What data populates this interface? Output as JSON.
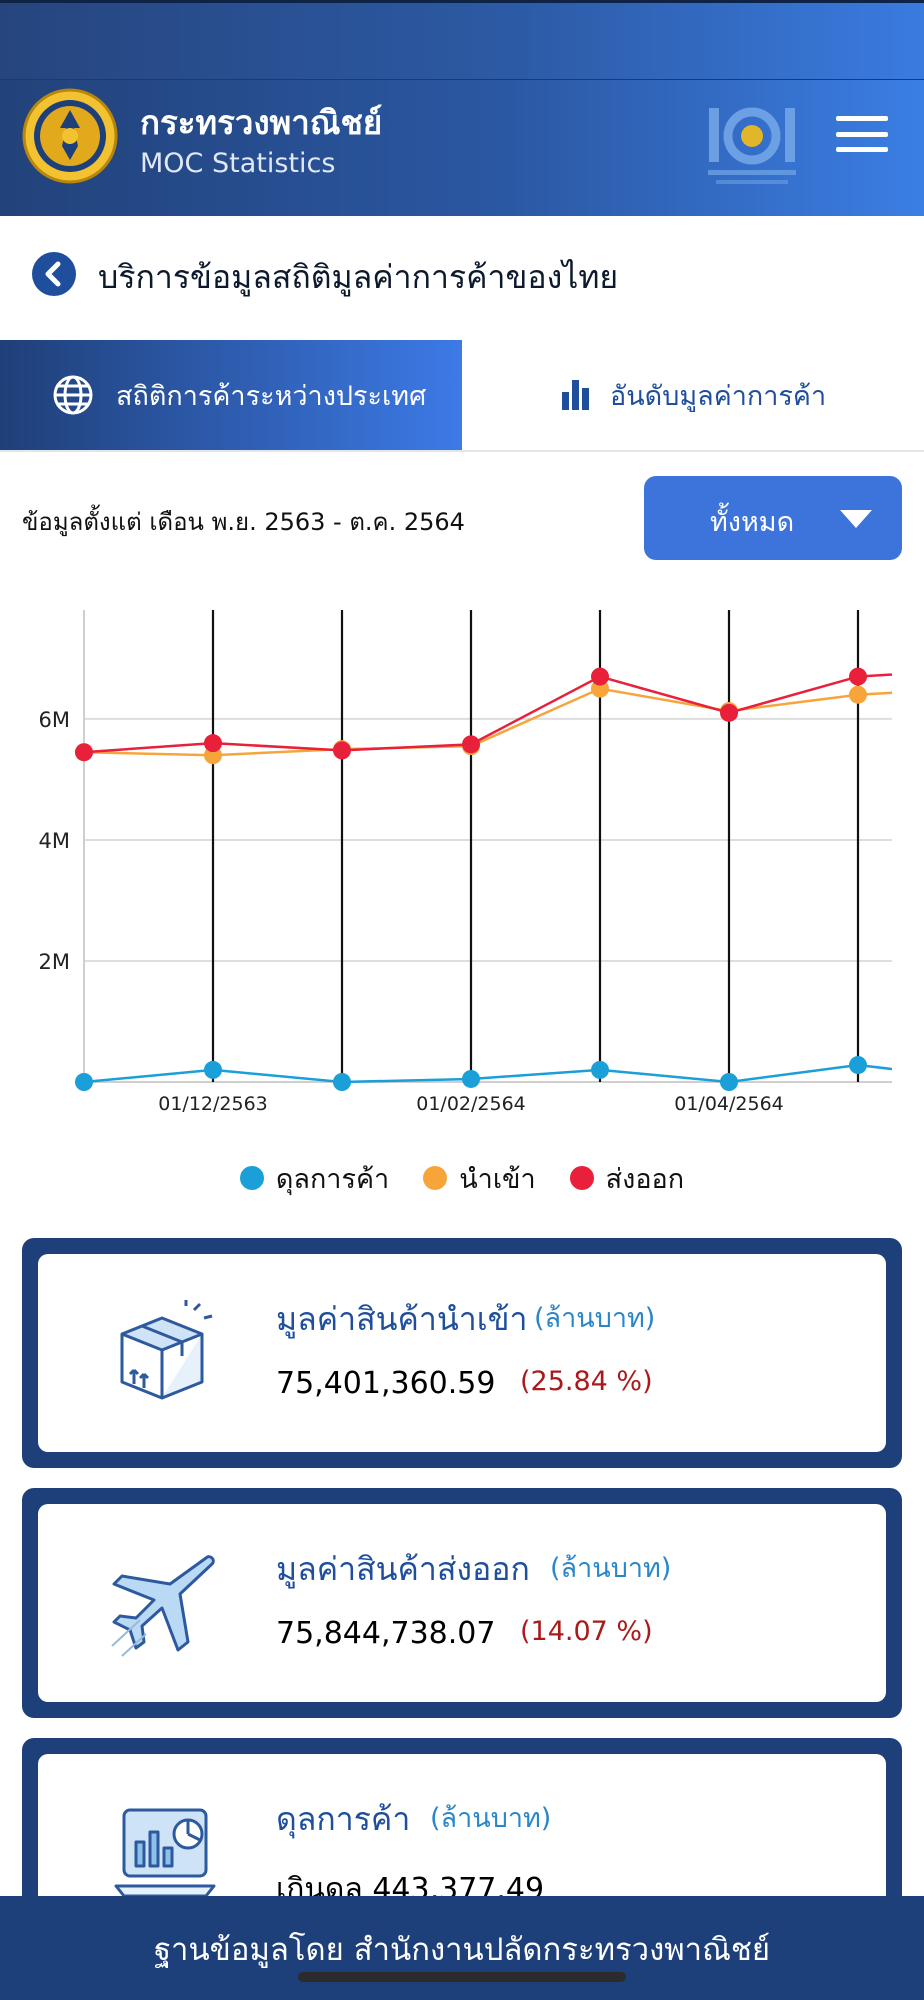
{
  "header": {
    "title": "กระทรวงพาณิชย์",
    "subtitle": "MOC Statistics"
  },
  "page": {
    "title": "บริการข้อมูลสถิติมูลค่าการค้าของไทย"
  },
  "tabs": [
    {
      "label": "สถิติการค้าระหว่างประเทศ",
      "active": true,
      "icon": "globe-icon"
    },
    {
      "label": "อันดับมูลค่าการค้า",
      "active": false,
      "icon": "bar-chart-icon"
    }
  ],
  "filter": {
    "date_range": "ข้อมูลตั้งแต่ เดือน พ.ย. 2563 - ต.ค. 2564",
    "dropdown_value": "ทั้งหมด"
  },
  "chart_data": {
    "type": "line",
    "y_ticks": [
      "2M",
      "4M",
      "6M"
    ],
    "x_tick_labels": [
      "01/12/2563",
      "01/02/2564",
      "01/04/2564"
    ],
    "x": [
      "01/11/2563",
      "01/12/2563",
      "01/01/2564",
      "01/02/2564",
      "01/03/2564",
      "01/04/2564",
      "01/05/2564"
    ],
    "ylim": [
      0,
      7800000
    ],
    "grid": true,
    "legend_position": "bottom",
    "series": [
      {
        "name": "ดุลการค้า",
        "color": "#1a9fd8",
        "values": [
          0,
          200000,
          0,
          50000,
          200000,
          0,
          280000
        ]
      },
      {
        "name": "นำเข้า",
        "color": "#f7a53a",
        "values": [
          5450000,
          5400000,
          5500000,
          5550000,
          6500000,
          6130000,
          6400000
        ]
      },
      {
        "name": "ส่งออก",
        "color": "#e8203a",
        "values": [
          5450000,
          5600000,
          5480000,
          5580000,
          6700000,
          6100000,
          6700000
        ]
      }
    ]
  },
  "cards": [
    {
      "title": "มูลค่าสินค้านำเข้า",
      "unit": "(ล้านบาท)",
      "value": "75,401,360.59",
      "change": "(25.84 %)",
      "icon": "import-box-icon"
    },
    {
      "title": "มูลค่าสินค้าส่งออก",
      "unit": "(ล้านบาท)",
      "value": "75,844,738.07",
      "change": "(14.07 %)",
      "icon": "airplane-icon"
    },
    {
      "title": "ดุลการค้า",
      "unit": "(ล้านบาท)",
      "value": "เกินดุล 443,377.49",
      "change": "",
      "icon": "report-chart-icon"
    }
  ],
  "footer": {
    "text": "ฐานข้อมูลโดย สำนักงานปลัดกระทรวงพาณิชย์"
  },
  "colors": {
    "primary": "#1d3f7a",
    "accent": "#3d74dc",
    "balance": "#1a9fd8",
    "import": "#f7a53a",
    "export": "#e8203a"
  }
}
